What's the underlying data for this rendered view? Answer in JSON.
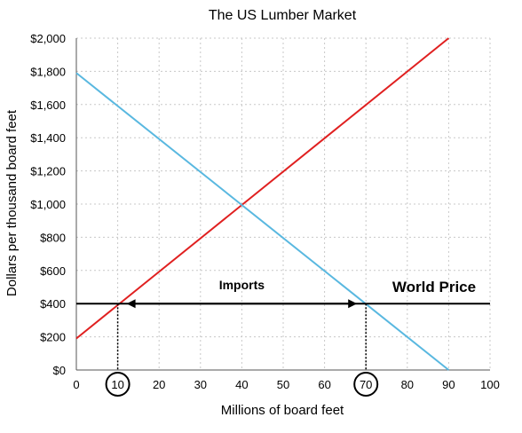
{
  "chart_data": {
    "type": "line",
    "title": "The US Lumber Market",
    "xlabel": "Millions of board feet",
    "ylabel": "Dollars per thousand board feet",
    "xlim": [
      0,
      100
    ],
    "ylim": [
      0,
      2000
    ],
    "x_ticks": [
      0,
      10,
      20,
      30,
      40,
      50,
      60,
      70,
      80,
      90,
      100
    ],
    "x_tick_labels": [
      "0",
      "10",
      "20",
      "30",
      "40",
      "50",
      "60",
      "70",
      "80",
      "90",
      "100"
    ],
    "y_ticks": [
      0,
      200,
      400,
      600,
      800,
      1000,
      1200,
      1400,
      1600,
      1800,
      2000
    ],
    "y_tick_labels": [
      "$0",
      "$200",
      "$400",
      "$600",
      "$800",
      "$1,000",
      "$1,200",
      "$1,400",
      "$1,600",
      "$1,800",
      "$2,000"
    ],
    "grid": true,
    "series": [
      {
        "color": "#e02020",
        "points": [
          [
            0,
            190
          ],
          [
            90,
            2000
          ]
        ]
      },
      {
        "color": "#59b8e0",
        "points": [
          [
            0,
            1790
          ],
          [
            90,
            0
          ]
        ]
      }
    ],
    "world_price": {
      "value": 400,
      "label": "World Price",
      "color": "#000000"
    },
    "imports": {
      "label": "Imports",
      "from": 10,
      "to": 70
    },
    "circled_ticks": [
      10,
      70
    ]
  }
}
